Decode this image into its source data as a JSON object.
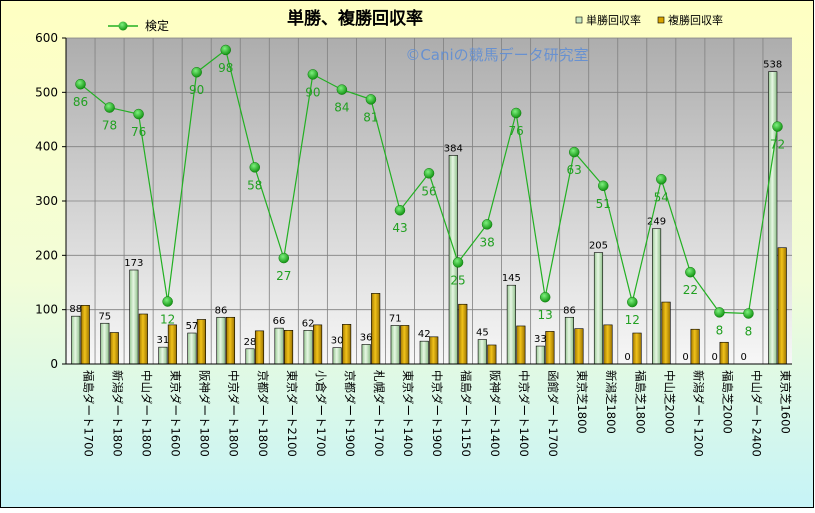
{
  "chart_data": {
    "type": "bar",
    "title": "単勝、複勝回収率",
    "watermark": "©Caniの競馬データ研究室",
    "legend": {
      "placement": "top",
      "entries": [
        {
          "name": "検定",
          "type": "line"
        },
        {
          "name": "単勝回収率",
          "type": "bar"
        },
        {
          "name": "複勝回収率",
          "type": "bar"
        }
      ]
    },
    "ylim": [
      0,
      600
    ],
    "yticks": [
      0,
      100,
      200,
      300,
      400,
      500,
      600
    ],
    "grid": true,
    "categories": [
      "福島ダート1700",
      "新潟ダート1800",
      "中山ダート1800",
      "東京ダート1600",
      "阪神ダート1800",
      "中京ダート1800",
      "京都ダート1800",
      "東京ダート2100",
      "小倉ダート1700",
      "京都ダート1900",
      "札幌ダート1700",
      "東京ダート1400",
      "中京ダート1900",
      "福島ダート1150",
      "阪神ダート1400",
      "中京ダート1400",
      "函館ダート1700",
      "東京芝1800",
      "新潟芝1800",
      "福島芝1800",
      "中山芝2000",
      "新潟ダート1200",
      "福島芝2000",
      "中山ダート2400",
      "東京芝1600"
    ],
    "series": [
      {
        "name": "単勝回収率",
        "kind": "bar",
        "color": "#c9e9c4",
        "values": [
          88,
          75,
          173,
          31,
          57,
          86,
          28,
          66,
          62,
          30,
          36,
          71,
          42,
          384,
          45,
          145,
          33,
          86,
          205,
          0,
          249,
          0,
          0,
          0,
          538
        ]
      },
      {
        "name": "複勝回収率",
        "kind": "bar",
        "color": "#d9a400",
        "values": [
          108,
          58,
          92,
          72,
          82,
          86,
          61,
          62,
          72,
          73,
          130,
          71,
          50,
          110,
          35,
          70,
          60,
          65,
          72,
          57,
          114,
          64,
          40,
          0,
          214
        ]
      },
      {
        "name": "検定",
        "kind": "line",
        "color": "#22b022",
        "values": [
          515,
          472,
          460,
          115,
          537,
          578,
          362,
          195,
          533,
          505,
          487,
          283,
          351,
          187,
          257,
          462,
          123,
          390,
          328,
          114,
          340,
          169,
          95,
          93,
          437
        ],
        "labels": [
          86,
          78,
          76,
          12,
          90,
          98,
          58,
          27,
          90,
          84,
          81,
          43,
          56,
          25,
          38,
          76,
          13,
          63,
          51,
          12,
          54,
          22,
          8,
          8,
          72
        ]
      }
    ]
  }
}
